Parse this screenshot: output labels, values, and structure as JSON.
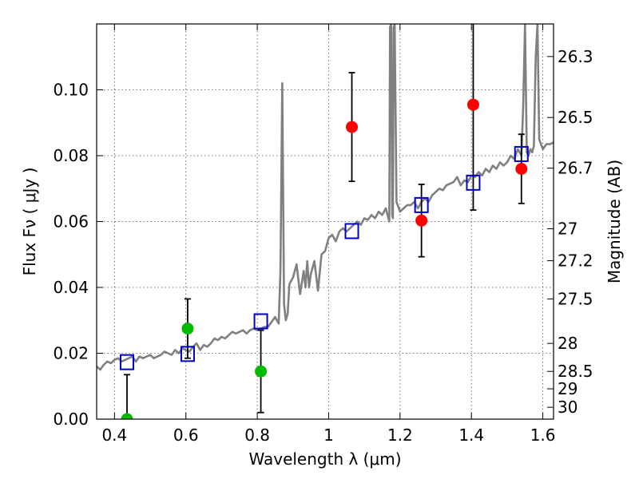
{
  "chart_data": {
    "type": "scatter",
    "xlabel": "Wavelength  λ (μm)",
    "ylabel": "Flux  Fν  ( μJy )",
    "ylabel_right": "Magnitude (AB)",
    "xlim": [
      0.35,
      1.63
    ],
    "ylim": [
      0.0,
      0.12
    ],
    "grid": true,
    "x_ticks": [
      0.4,
      0.6,
      0.8,
      1.0,
      1.2,
      1.4,
      1.6
    ],
    "x_tick_labels": [
      "0.4",
      "0.6",
      "0.8",
      "1",
      "1.2",
      "1.4",
      "1.6"
    ],
    "y_ticks": [
      0.0,
      0.02,
      0.04,
      0.06,
      0.08,
      0.1
    ],
    "y_tick_labels": [
      "0.00",
      "0.02",
      "0.04",
      "0.06",
      "0.08",
      "0.10"
    ],
    "right_ticks": [
      {
        "label": "26.3",
        "flux": 0.1101
      },
      {
        "label": "26.5",
        "flux": 0.0916
      },
      {
        "label": "26.7",
        "flux": 0.0762
      },
      {
        "label": "27",
        "flux": 0.0578
      },
      {
        "label": "27.2",
        "flux": 0.0481
      },
      {
        "label": "27.5",
        "flux": 0.0365
      },
      {
        "label": "28",
        "flux": 0.023
      },
      {
        "label": "28.5",
        "flux": 0.0145
      },
      {
        "label": "29",
        "flux": 0.0092
      },
      {
        "label": "30",
        "flux": 0.0036
      }
    ],
    "series": [
      {
        "type": "line",
        "color": "#808080",
        "x": [
          0.35,
          0.36,
          0.37,
          0.38,
          0.39,
          0.4,
          0.41,
          0.42,
          0.43,
          0.44,
          0.45,
          0.46,
          0.47,
          0.48,
          0.49,
          0.5,
          0.51,
          0.52,
          0.53,
          0.54,
          0.55,
          0.56,
          0.57,
          0.58,
          0.59,
          0.6,
          0.61,
          0.62,
          0.63,
          0.64,
          0.65,
          0.66,
          0.67,
          0.68,
          0.69,
          0.7,
          0.71,
          0.72,
          0.73,
          0.74,
          0.75,
          0.76,
          0.77,
          0.78,
          0.79,
          0.8,
          0.81,
          0.82,
          0.83,
          0.84,
          0.85,
          0.86,
          0.865,
          0.87,
          0.875,
          0.88,
          0.885,
          0.89,
          0.9,
          0.91,
          0.92,
          0.93,
          0.935,
          0.94,
          0.945,
          0.95,
          0.96,
          0.97,
          0.98,
          0.99,
          1.0,
          1.01,
          1.02,
          1.03,
          1.04,
          1.05,
          1.06,
          1.07,
          1.08,
          1.09,
          1.1,
          1.11,
          1.12,
          1.13,
          1.14,
          1.15,
          1.16,
          1.17,
          1.172,
          1.175,
          1.178,
          1.18,
          1.182,
          1.185,
          1.19,
          1.2,
          1.21,
          1.22,
          1.23,
          1.24,
          1.25,
          1.26,
          1.27,
          1.28,
          1.29,
          1.3,
          1.31,
          1.32,
          1.33,
          1.34,
          1.35,
          1.36,
          1.37,
          1.38,
          1.39,
          1.4,
          1.41,
          1.42,
          1.43,
          1.44,
          1.45,
          1.46,
          1.47,
          1.48,
          1.49,
          1.5,
          1.51,
          1.52,
          1.53,
          1.54,
          1.545,
          1.55,
          1.555,
          1.56,
          1.565,
          1.57,
          1.575,
          1.58,
          1.585,
          1.59,
          1.6,
          1.61,
          1.62,
          1.63
        ],
        "y": [
          0.016,
          0.015,
          0.0165,
          0.0175,
          0.017,
          0.018,
          0.0185,
          0.0175,
          0.018,
          0.0185,
          0.019,
          0.0175,
          0.019,
          0.0185,
          0.019,
          0.0195,
          0.0185,
          0.019,
          0.0195,
          0.0205,
          0.02,
          0.0195,
          0.021,
          0.02,
          0.0215,
          0.021,
          0.0205,
          0.022,
          0.023,
          0.021,
          0.0225,
          0.022,
          0.023,
          0.0245,
          0.024,
          0.025,
          0.0245,
          0.0255,
          0.0265,
          0.026,
          0.0265,
          0.027,
          0.026,
          0.027,
          0.0275,
          0.027,
          0.0275,
          0.028,
          0.028,
          0.0295,
          0.031,
          0.029,
          0.045,
          0.102,
          0.035,
          0.03,
          0.032,
          0.041,
          0.043,
          0.047,
          0.038,
          0.045,
          0.04,
          0.048,
          0.04,
          0.044,
          0.048,
          0.039,
          0.05,
          0.051,
          0.055,
          0.056,
          0.054,
          0.057,
          0.058,
          0.057,
          0.058,
          0.059,
          0.06,
          0.059,
          0.061,
          0.0605,
          0.062,
          0.061,
          0.063,
          0.062,
          0.064,
          0.06,
          0.119,
          0.12,
          0.062,
          0.061,
          0.119,
          0.12,
          0.066,
          0.063,
          0.064,
          0.065,
          0.065,
          0.066,
          0.064,
          0.066,
          0.067,
          0.066,
          0.068,
          0.069,
          0.07,
          0.0695,
          0.071,
          0.0715,
          0.072,
          0.0735,
          0.071,
          0.0725,
          0.072,
          0.074,
          0.0735,
          0.075,
          0.074,
          0.076,
          0.075,
          0.077,
          0.076,
          0.078,
          0.077,
          0.078,
          0.08,
          0.079,
          0.082,
          0.08,
          0.095,
          0.12,
          0.081,
          0.08,
          0.082,
          0.081,
          0.083,
          0.11,
          0.12,
          0.085,
          0.082,
          0.0835,
          0.0835,
          0.084
        ]
      },
      {
        "type": "scatter",
        "marker": "square",
        "color": "#0000cc",
        "x": [
          0.435,
          0.605,
          0.81,
          1.065,
          1.26,
          1.405,
          1.54
        ],
        "y": [
          0.0173,
          0.0198,
          0.0297,
          0.0571,
          0.065,
          0.0718,
          0.0805
        ]
      },
      {
        "type": "scatter",
        "marker": "circle",
        "color": "#00bb00",
        "x": [
          0.435,
          0.605,
          0.81
        ],
        "y": [
          0.0,
          0.0275,
          0.0145
        ],
        "yerr": [
          0.0135,
          0.009,
          0.0125
        ]
      },
      {
        "type": "scatter",
        "marker": "circle",
        "color": "#ff0000",
        "x": [
          1.065,
          1.26,
          1.405,
          1.54
        ],
        "y": [
          0.0887,
          0.0603,
          0.0955,
          0.076
        ],
        "yerr": [
          0.0165,
          0.011,
          0.032,
          0.0105
        ]
      }
    ]
  }
}
